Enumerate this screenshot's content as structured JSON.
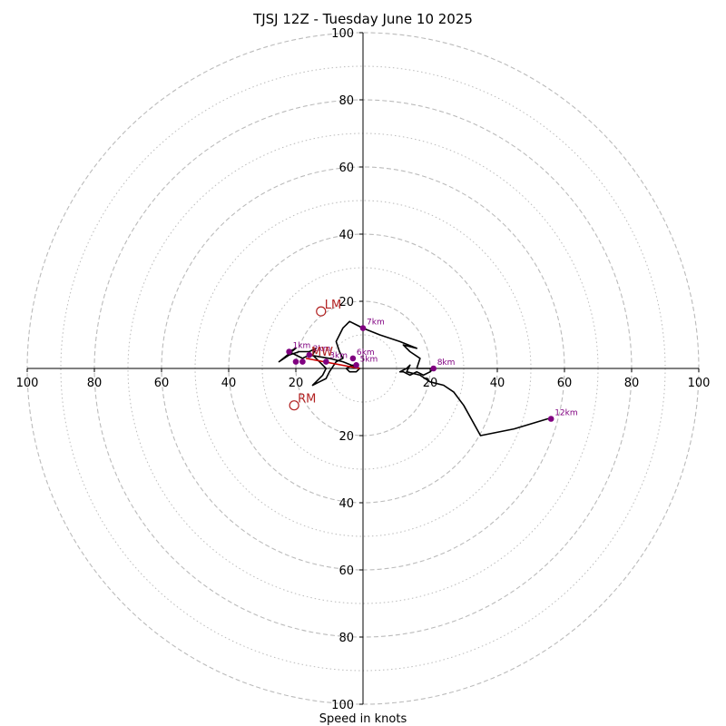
{
  "chart_data": {
    "type": "hodograph",
    "title": "TJSJ 12Z - Tuesday June 10 2025",
    "xlabel": "Speed in knots",
    "range": 100,
    "rings_dashed": [
      20,
      40,
      60,
      80,
      100
    ],
    "rings_dotted": [
      10,
      30,
      50,
      70,
      90
    ],
    "tick_labels": {
      "top": [
        "20",
        "40",
        "60",
        "80",
        "100"
      ],
      "bottom": [
        "20",
        "40",
        "60",
        "80",
        "100"
      ],
      "left": [
        "20",
        "40",
        "60",
        "80",
        "100"
      ],
      "right": [
        "20",
        "40",
        "60",
        "80",
        "100"
      ]
    },
    "colors": {
      "trace": "#000000",
      "points": "#800080",
      "motion": "#b22222",
      "mean_wind_line": "#cc0000",
      "grid": "#bbbbbb"
    },
    "hodograph_trace": [
      [
        -1,
        0
      ],
      [
        -3,
        1
      ],
      [
        -5,
        0
      ],
      [
        -4,
        -1
      ],
      [
        -2,
        -1
      ],
      [
        -1,
        0
      ],
      [
        -6,
        2
      ],
      [
        -10,
        3
      ],
      [
        -16,
        4
      ],
      [
        -18,
        3
      ],
      [
        -22,
        5
      ],
      [
        -20,
        6
      ],
      [
        -25,
        2
      ],
      [
        -22,
        4
      ],
      [
        -19,
        5
      ],
      [
        -16,
        5
      ],
      [
        -14,
        6
      ],
      [
        -15,
        4
      ],
      [
        -13,
        2
      ],
      [
        -11,
        0
      ],
      [
        -12,
        -2
      ],
      [
        -14,
        -4
      ],
      [
        -15,
        -5
      ],
      [
        -13,
        -4
      ],
      [
        -11,
        -3
      ],
      [
        -10,
        -1
      ],
      [
        -8,
        2
      ],
      [
        -6,
        3
      ],
      [
        -7,
        5
      ],
      [
        -8,
        8
      ],
      [
        -6,
        12
      ],
      [
        -5,
        13
      ],
      [
        -4,
        14
      ],
      [
        -2,
        13
      ],
      [
        0,
        12
      ],
      [
        5,
        10
      ],
      [
        11,
        8
      ],
      [
        16,
        6
      ],
      [
        12,
        7
      ],
      [
        14,
        5
      ],
      [
        17,
        3
      ],
      [
        16,
        0
      ],
      [
        19,
        0
      ],
      [
        21,
        0
      ],
      [
        20,
        -1
      ],
      [
        18,
        -2
      ],
      [
        16,
        -1
      ],
      [
        14,
        -2
      ],
      [
        12,
        -1
      ],
      [
        11,
        -1
      ],
      [
        13,
        0
      ],
      [
        14,
        1
      ],
      [
        13,
        -1
      ],
      [
        17,
        -2
      ],
      [
        20,
        -4
      ],
      [
        24,
        -5
      ],
      [
        27,
        -7
      ],
      [
        30,
        -11
      ],
      [
        35,
        -20
      ],
      [
        45,
        -18
      ],
      [
        55,
        -15
      ],
      [
        56,
        -15
      ]
    ],
    "height_markers": [
      {
        "label": "12km",
        "u": 56,
        "v": -15
      },
      {
        "label": "8km",
        "u": 21,
        "v": 0
      },
      {
        "label": "7km",
        "u": 0,
        "v": 12
      },
      {
        "label": "6km",
        "u": -3,
        "v": 3
      },
      {
        "label": "5km",
        "u": -2,
        "v": 1
      },
      {
        "label": "3km",
        "u": -11,
        "v": 2
      },
      {
        "label": "2km",
        "u": -16,
        "v": 4
      },
      {
        "label": "1km",
        "u": -22,
        "v": 5
      },
      {
        "label": "",
        "u": -20,
        "v": 2
      },
      {
        "label": "",
        "u": -18,
        "v": 2
      }
    ],
    "storm_motion": [
      {
        "label": "LM",
        "u": -12.5,
        "v": 17
      },
      {
        "label": "RM",
        "u": -20.5,
        "v": -11
      },
      {
        "label": "MW",
        "u": -16.5,
        "v": 3
      }
    ],
    "mean_wind_line": [
      [
        -17,
        3
      ],
      [
        -1,
        0
      ]
    ]
  }
}
